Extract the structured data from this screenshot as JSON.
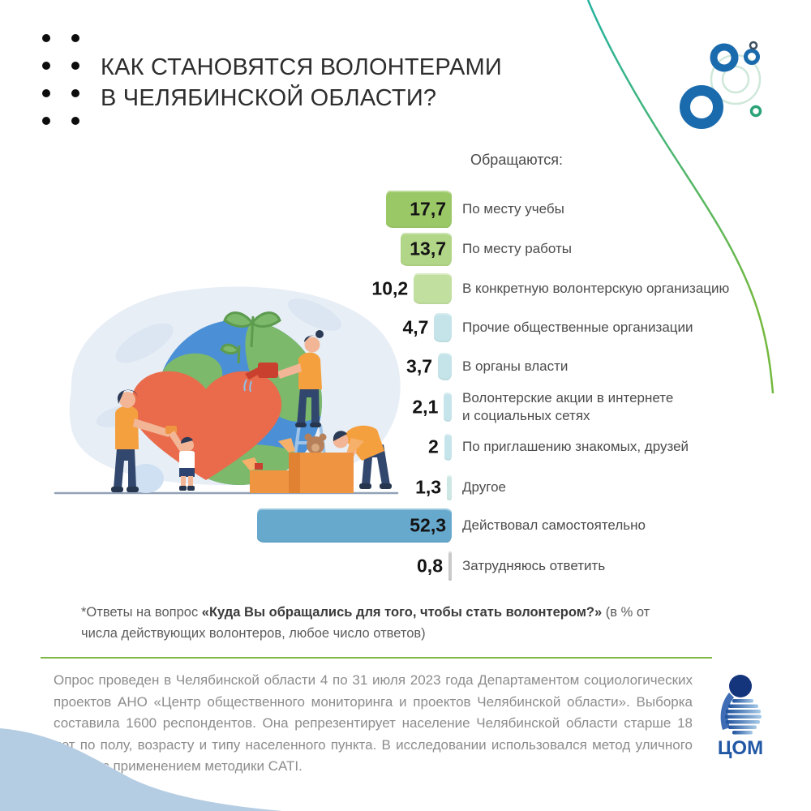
{
  "header": {
    "title_line1": "КАК СТАНОВЯТСЯ ВОЛОНТЕРАМИ",
    "title_line2": "В ЧЕЛЯБИНСКОЙ ОБЛАСТИ?"
  },
  "chart_data": {
    "type": "bar",
    "orientation": "horizontal",
    "heading": "Обращаются:",
    "categories": [
      "По месту учебы",
      "По месту работы",
      "В конкретную волонтерскую организацию",
      "Прочие общественные организации",
      "В органы власти",
      "Волонтерские акции в интернете\nи социальных сетях",
      "По приглашению знакомых, друзей",
      "Другое",
      "Действовал самостоятельно",
      "Затрудняюсь ответить"
    ],
    "values": [
      17.7,
      13.7,
      10.2,
      4.7,
      3.7,
      2.1,
      2,
      1.3,
      52.3,
      0.8
    ],
    "value_labels": [
      "17,7",
      "13,7",
      "10,2",
      "4,7",
      "3,7",
      "2,1",
      "2",
      "1,3",
      "52,3",
      "0,8"
    ],
    "bar_colors": [
      "#9bc867",
      "#b1d687",
      "#c1df9f",
      "#c4e4e9",
      "#c4e4e9",
      "#c6e5ea",
      "#c6e5ea",
      "#cde8e4",
      "#66a9cd",
      "#c9c9c9"
    ],
    "xlim": [
      0,
      55
    ],
    "unit": "% от числа действующих волонтеров",
    "legend": "none",
    "grid": false
  },
  "footnote": {
    "prefix": "*Ответы на вопрос ",
    "question": "«Куда Вы обращались для того, чтобы стать волонтером?»",
    "suffix": " (в % от числа действующих волонтеров, любое число ответов)"
  },
  "footer": {
    "text": "Опрос проведен в Челябинской области 4 по 31 июля 2023 года Департаментом социологических проектов АНО «Центр общественного мониторинга и проектов Челябинской области». Выборка составила 1600 респондентов. Она репрезентирует население Челябинской области старше 18 лет по полу, возрасту и типу населенного пункта. В исследовании использовался метод уличного опроса с применением методики CATI.",
    "logo_text": "ЦОМ"
  },
  "colors": {
    "accent_green_line": "#7cb843",
    "big_bar_blue": "#66a9cd",
    "decor_blue": "#1a6bad",
    "decor_green": "#2aa377",
    "wave_blue": "#b5cde3"
  }
}
